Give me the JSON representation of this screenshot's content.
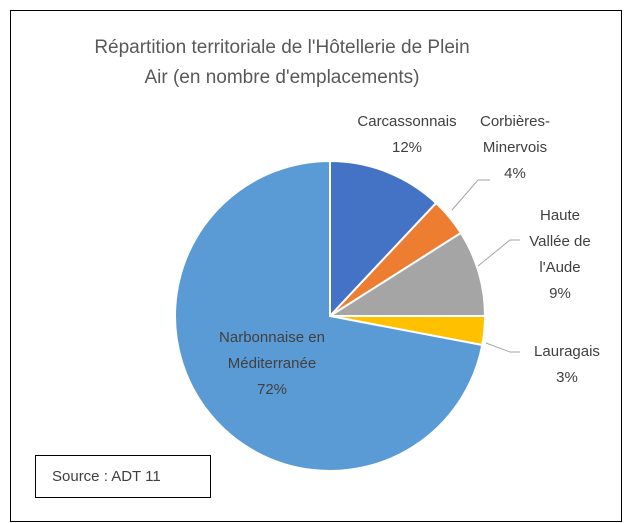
{
  "chart_data": {
    "type": "pie",
    "title": "Répartition territoriale de l'Hôtellerie de Plein Air (en nombre d'emplacements)",
    "categories": [
      "Carcassonnais",
      "Corbières-Minervois",
      "Haute Vallée de l'Aude",
      "Lauragais",
      "Narbonnaise en Méditerranée"
    ],
    "values": [
      12,
      4,
      9,
      3,
      72
    ],
    "value_labels": [
      "12%",
      "4%",
      "9%",
      "3%",
      "72%"
    ],
    "colors": [
      "#4472c4",
      "#ed7d31",
      "#a5a5a5",
      "#ffc000",
      "#5b9bd5"
    ],
    "source": "Source : ADT 11"
  }
}
